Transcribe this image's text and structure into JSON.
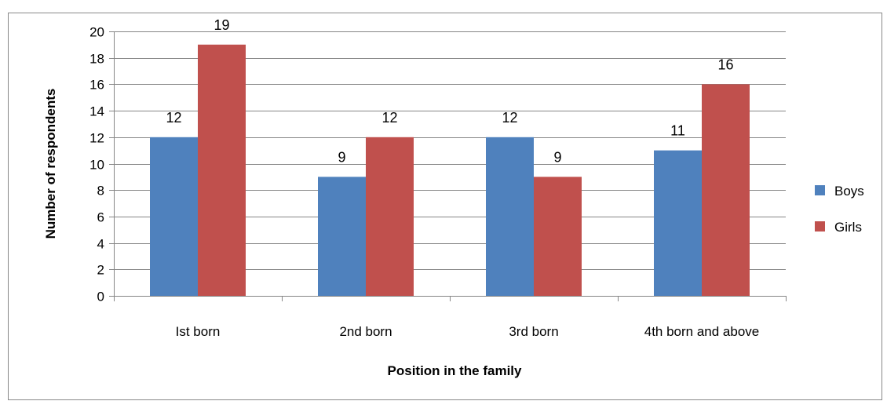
{
  "chart_data": {
    "type": "bar",
    "categories": [
      "Ist born",
      "2nd born",
      "3rd born",
      "4th born and above"
    ],
    "series": [
      {
        "name": "Boys",
        "values": [
          12,
          9,
          12,
          11
        ]
      },
      {
        "name": "Girls",
        "values": [
          19,
          12,
          9,
          16
        ]
      }
    ],
    "title": "",
    "xlabel": "Position in the family",
    "ylabel": "Number of respondents",
    "ylim": [
      0,
      20
    ],
    "yticks": [
      0,
      2,
      4,
      6,
      8,
      10,
      12,
      14,
      16,
      18,
      20
    ],
    "grid": true,
    "legend": "right",
    "colors": {
      "Boys": "#4F81BD",
      "Girls": "#C0504D"
    }
  }
}
